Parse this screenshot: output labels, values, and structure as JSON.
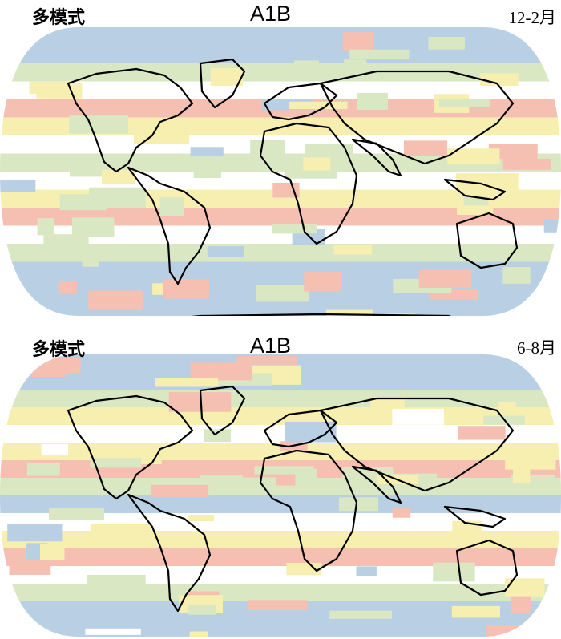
{
  "palette": {
    "blue": "#b8cfe4",
    "green": "#d9e8c2",
    "yellow": "#f7efb0",
    "red": "#f5c0b2",
    "white": "#ffffff"
  },
  "panels": [
    {
      "model_label": "多模式",
      "scenario_label": "A1B",
      "season_label": "12-2月",
      "bands": [
        "blue",
        "blue",
        "green",
        "white",
        "red",
        "yellow",
        "white",
        "green",
        "white",
        "yellow",
        "red",
        "white",
        "green",
        "blue",
        "blue",
        "blue"
      ],
      "patches": [
        "green",
        "yellow",
        "green",
        "green",
        "blue",
        "red",
        "yellow",
        "green",
        "green",
        "red",
        "yellow",
        "blue",
        "green",
        "red",
        "yellow",
        "green"
      ]
    },
    {
      "model_label": "多模式",
      "scenario_label": "A1B",
      "season_label": "6-8月",
      "bands": [
        "blue",
        "blue",
        "green",
        "yellow",
        "white",
        "yellow",
        "red",
        "green",
        "blue",
        "white",
        "yellow",
        "red",
        "white",
        "green",
        "blue",
        "blue"
      ],
      "patches": [
        "red",
        "yellow",
        "green",
        "red",
        "yellow",
        "green",
        "red",
        "yellow",
        "blue",
        "green",
        "red",
        "yellow",
        "green",
        "white",
        "yellow",
        "green"
      ]
    }
  ]
}
